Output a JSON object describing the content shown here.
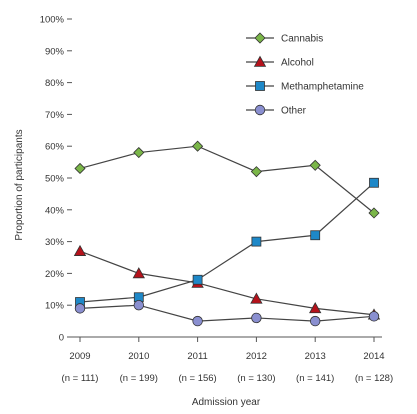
{
  "chart_data": {
    "type": "line",
    "title": "",
    "xlabel": "Admission year",
    "ylabel": "Proportion of participants",
    "x": [
      "2009",
      "2010",
      "2011",
      "2012",
      "2013",
      "2014"
    ],
    "x_sublabels": [
      "(n = 111)",
      "(n = 199)",
      "(n = 156)",
      "(n = 130)",
      "(n = 141)",
      "(n = 128)"
    ],
    "yticks": [
      "0",
      "10%",
      "20%",
      "30%",
      "40%",
      "50%",
      "60%",
      "70%",
      "80%",
      "90%",
      "100%"
    ],
    "ylim": [
      0,
      100
    ],
    "grid": false,
    "legend_position": "top-right",
    "series": [
      {
        "name": "Cannabis",
        "marker": "diamond",
        "color": "#7ab648",
        "values": [
          53,
          58,
          60,
          52,
          54,
          39
        ]
      },
      {
        "name": "Alcohol",
        "marker": "triangle",
        "color": "#b5121b",
        "values": [
          27,
          20,
          17,
          12,
          9,
          7
        ]
      },
      {
        "name": "Methamphetamine",
        "marker": "square",
        "color": "#1e88c8",
        "values": [
          11,
          12.5,
          18,
          30,
          32,
          48.5
        ]
      },
      {
        "name": "Other",
        "marker": "circle",
        "color": "#8a8fd0",
        "values": [
          9,
          10,
          5,
          6,
          5,
          6.5
        ]
      }
    ]
  }
}
